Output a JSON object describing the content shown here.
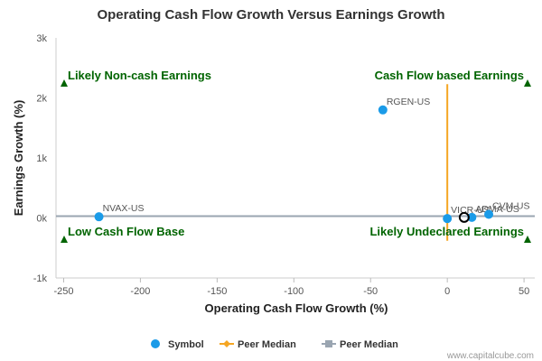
{
  "chart_data": {
    "type": "scatter",
    "title": "Operating Cash Flow Growth Versus Earnings Growth",
    "xlabel": "Operating Cash Flow Growth (%)",
    "ylabel": "Earnings Growth (%)",
    "xlim": [
      -255,
      57
    ],
    "ylim": [
      -1000,
      3000
    ],
    "x_ticks": [
      -250,
      -200,
      -150,
      -100,
      -50,
      0,
      50
    ],
    "x_tick_labels": [
      "-250",
      "-200",
      "-150",
      "-100",
      "-50",
      "0",
      "50"
    ],
    "y_ticks": [
      -1000,
      0,
      1000,
      2000,
      3000
    ],
    "y_tick_labels": [
      "-1k",
      "0k",
      "1k",
      "2k",
      "3k"
    ],
    "grid": false,
    "legend_position": "bottom",
    "series": [
      {
        "name": "Symbol",
        "color": "#1a9be8",
        "points": [
          {
            "label": "RGEN-US",
            "x": -42,
            "y": 1800
          },
          {
            "label": "NVAX-US",
            "x": -227,
            "y": 20
          },
          {
            "label": "VICR-US",
            "x": 0,
            "y": -10
          },
          {
            "label": "ADMA-US",
            "x": 16,
            "y": 10
          },
          {
            "label": "CVM-US",
            "x": 27,
            "y": 60
          }
        ]
      },
      {
        "name": "Peer Median",
        "color": "#f5a623",
        "x": 0,
        "y_range": [
          -380,
          2230
        ]
      },
      {
        "name": "Peer Median",
        "color": "#9aa5b1",
        "y": 30,
        "x_range": [
          -255,
          57
        ]
      }
    ],
    "highlight_point": {
      "x": 11,
      "y": 10,
      "color": "#000000"
    },
    "quadrant_labels": [
      {
        "text": "Likely Non-cash Earnings",
        "position": "top-left"
      },
      {
        "text": "Cash Flow based Earnings",
        "position": "top-right"
      },
      {
        "text": "Low Cash Flow Base",
        "position": "bottom-left"
      },
      {
        "text": "Likely Undeclared Earnings",
        "position": "bottom-right"
      }
    ],
    "quadrant_color": "#006400"
  },
  "credit": "www.capitalcube.com"
}
